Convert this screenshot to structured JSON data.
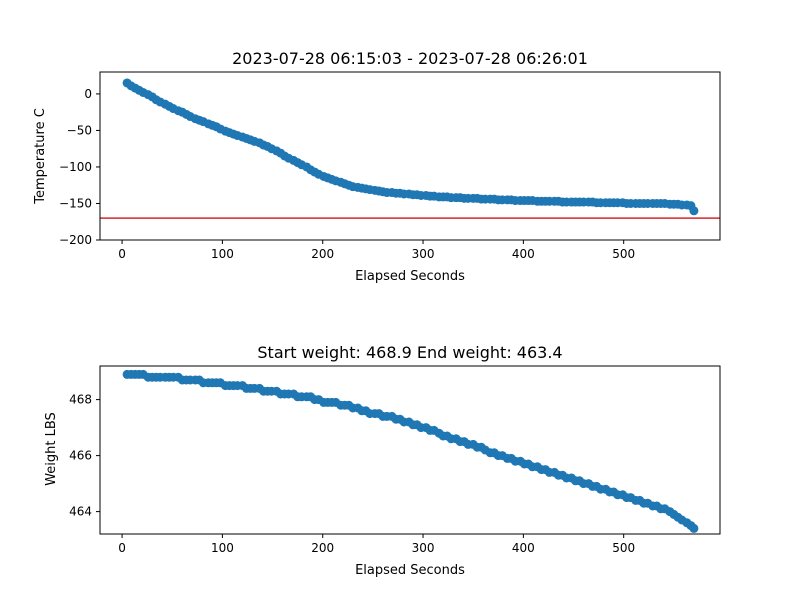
{
  "chart_data": [
    {
      "type": "scatter",
      "title": "2023-07-28 06:15:03 - 2023-07-28 06:26:01",
      "xlabel": "Elapsed Seconds",
      "ylabel": "Temperature C",
      "xlim": [
        -22,
        596
      ],
      "ylim": [
        -200,
        30
      ],
      "xticks": [
        0,
        100,
        200,
        300,
        400,
        500
      ],
      "yticks": [
        0,
        -50,
        -100,
        -150,
        -200
      ],
      "grid": false,
      "color": "#1f77b4",
      "reference_line": {
        "y": -170,
        "color": "#d62728"
      },
      "x": [
        5,
        9,
        13,
        17,
        21,
        26,
        30,
        34,
        38,
        43,
        47,
        51,
        56,
        60,
        64,
        68,
        73,
        77,
        81,
        86,
        90,
        94,
        98,
        103,
        107,
        111,
        115,
        120,
        124,
        128,
        132,
        137,
        141,
        145,
        149,
        154,
        158,
        162,
        166,
        171,
        175,
        179,
        184,
        188,
        192,
        196,
        201,
        205,
        209,
        213,
        218,
        222,
        226,
        230,
        235,
        239,
        243,
        247,
        252,
        256,
        260,
        264,
        269,
        273,
        277,
        281,
        286,
        290,
        294,
        298,
        303,
        307,
        311,
        316,
        320,
        324,
        328,
        333,
        337,
        341,
        345,
        350,
        354,
        358,
        362,
        367,
        371,
        375,
        379,
        384,
        388,
        392,
        397,
        401,
        405,
        409,
        414,
        418,
        422,
        426,
        431,
        435,
        439,
        443,
        448,
        452,
        456,
        460,
        465,
        469,
        473,
        477,
        482,
        486,
        490,
        494,
        499,
        503,
        507,
        512,
        516,
        520,
        524,
        529,
        533,
        537,
        541,
        546,
        550,
        554,
        558,
        563,
        567,
        570
      ],
      "y": [
        15,
        11,
        8,
        5,
        2,
        -1,
        -4,
        -8,
        -11,
        -14,
        -17,
        -20,
        -23,
        -25,
        -28,
        -31,
        -34,
        -36,
        -38,
        -41,
        -43,
        -45,
        -48,
        -51,
        -53,
        -55,
        -57,
        -59,
        -61,
        -63,
        -65,
        -67,
        -70,
        -72,
        -75,
        -78,
        -81,
        -85,
        -88,
        -91,
        -94,
        -97,
        -100,
        -104,
        -107,
        -110,
        -113,
        -115,
        -117,
        -119,
        -121,
        -123,
        -125,
        -127,
        -128,
        -129,
        -130,
        -131,
        -132,
        -133,
        -134,
        -135,
        -135,
        -136,
        -136,
        -137,
        -137,
        -138,
        -138,
        -139,
        -139,
        -140,
        -140,
        -141,
        -141,
        -141,
        -142,
        -142,
        -142,
        -143,
        -143,
        -143,
        -143,
        -144,
        -144,
        -144,
        -144,
        -145,
        -145,
        -145,
        -145,
        -146,
        -146,
        -146,
        -146,
        -146,
        -147,
        -147,
        -147,
        -147,
        -147,
        -147,
        -148,
        -148,
        -148,
        -148,
        -148,
        -148,
        -148,
        -148,
        -149,
        -149,
        -149,
        -149,
        -149,
        -149,
        -149,
        -150,
        -150,
        -150,
        -150,
        -150,
        -150,
        -150,
        -150,
        -150,
        -150,
        -151,
        -151,
        -151,
        -152,
        -152,
        -153,
        -160
      ]
    },
    {
      "type": "scatter",
      "title": "Start weight: 468.9 End weight: 463.4",
      "xlabel": "Elapsed Seconds",
      "ylabel": "Weight LBS",
      "xlim": [
        -22,
        596
      ],
      "ylim": [
        463.2,
        469.2
      ],
      "xticks": [
        0,
        100,
        200,
        300,
        400,
        500
      ],
      "yticks": [
        464,
        466,
        468
      ],
      "grid": false,
      "color": "#1f77b4",
      "x": [
        5,
        9,
        13,
        17,
        21,
        26,
        30,
        34,
        38,
        43,
        47,
        51,
        56,
        60,
        64,
        68,
        73,
        77,
        81,
        86,
        90,
        94,
        98,
        103,
        107,
        111,
        115,
        120,
        124,
        128,
        132,
        137,
        141,
        145,
        149,
        154,
        158,
        162,
        166,
        171,
        175,
        179,
        184,
        188,
        192,
        196,
        201,
        205,
        209,
        213,
        218,
        222,
        226,
        230,
        235,
        239,
        243,
        247,
        252,
        256,
        260,
        264,
        269,
        273,
        277,
        281,
        286,
        290,
        294,
        298,
        303,
        307,
        311,
        316,
        320,
        324,
        328,
        333,
        337,
        341,
        345,
        350,
        354,
        358,
        362,
        367,
        371,
        375,
        379,
        384,
        388,
        392,
        397,
        401,
        405,
        409,
        414,
        418,
        422,
        426,
        431,
        435,
        439,
        443,
        448,
        452,
        456,
        460,
        465,
        469,
        473,
        477,
        482,
        486,
        490,
        494,
        499,
        503,
        507,
        512,
        516,
        520,
        524,
        529,
        533,
        537,
        541,
        546,
        550,
        554,
        558,
        563,
        567,
        570
      ],
      "y": [
        468.9,
        468.9,
        468.9,
        468.9,
        468.9,
        468.8,
        468.8,
        468.8,
        468.8,
        468.8,
        468.8,
        468.8,
        468.8,
        468.7,
        468.7,
        468.7,
        468.7,
        468.7,
        468.6,
        468.6,
        468.6,
        468.6,
        468.6,
        468.5,
        468.5,
        468.5,
        468.5,
        468.5,
        468.4,
        468.4,
        468.4,
        468.4,
        468.3,
        468.3,
        468.3,
        468.3,
        468.2,
        468.2,
        468.2,
        468.2,
        468.1,
        468.1,
        468.1,
        468.1,
        468.0,
        468.0,
        467.9,
        467.9,
        467.9,
        467.9,
        467.8,
        467.8,
        467.8,
        467.7,
        467.7,
        467.6,
        467.6,
        467.5,
        467.5,
        467.5,
        467.4,
        467.4,
        467.4,
        467.3,
        467.3,
        467.2,
        467.2,
        467.1,
        467.1,
        467.0,
        467.0,
        466.9,
        466.9,
        466.8,
        466.7,
        466.7,
        466.6,
        466.6,
        466.5,
        466.5,
        466.4,
        466.4,
        466.3,
        466.3,
        466.2,
        466.1,
        466.1,
        466.0,
        466.0,
        465.9,
        465.9,
        465.8,
        465.8,
        465.7,
        465.7,
        465.6,
        465.6,
        465.5,
        465.5,
        465.4,
        465.4,
        465.3,
        465.3,
        465.2,
        465.2,
        465.1,
        465.1,
        465.0,
        465.0,
        464.9,
        464.9,
        464.8,
        464.8,
        464.7,
        464.7,
        464.6,
        464.6,
        464.5,
        464.5,
        464.4,
        464.4,
        464.3,
        464.3,
        464.2,
        464.2,
        464.1,
        464.1,
        464.0,
        463.9,
        463.8,
        463.7,
        463.6,
        463.5,
        463.4
      ]
    }
  ]
}
